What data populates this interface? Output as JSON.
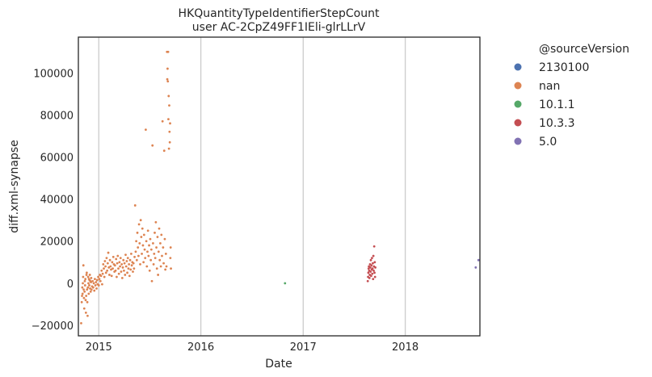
{
  "chart_data": {
    "type": "scatter",
    "title": "HKQuantityTypeIdentifierStepCount",
    "subtitle": "user AC-2CpZ49FF1IEli-glrLLrV",
    "xlabel": "Date",
    "ylabel": "diff.xml-synapse",
    "xlim": [
      "2014-10-20",
      "2018-09-25"
    ],
    "ylim": [
      -25000,
      117000
    ],
    "x_ticks": [
      "2015",
      "2016",
      "2017",
      "2018"
    ],
    "y_ticks": [
      -20000,
      0,
      20000,
      40000,
      60000,
      80000,
      100000
    ],
    "y_tick_labels": [
      "−20000",
      "0",
      "20000",
      "40000",
      "60000",
      "80000",
      "100000"
    ],
    "grid": "vertical",
    "legend_placement": "outside-right",
    "legend": {
      "title": "@sourceVersion",
      "entries": [
        {
          "name": "2130100",
          "color": "#4c72b0"
        },
        {
          "name": "nan",
          "color": "#dd8452"
        },
        {
          "name": "10.1.1",
          "color": "#55a868"
        },
        {
          "name": "10.3.3",
          "color": "#c44e52"
        },
        {
          "name": "5.0",
          "color": "#8172b3"
        }
      ]
    },
    "series": [
      {
        "name": "2130100",
        "color": "#4c72b0",
        "points": []
      },
      {
        "name": "nan",
        "color": "#dd8452",
        "points": [
          [
            "2014-10-30",
            -19000
          ],
          [
            "2014-11-01",
            -9000
          ],
          [
            "2014-11-02",
            -6000
          ],
          [
            "2014-11-03",
            -2000
          ],
          [
            "2014-11-04",
            -5000
          ],
          [
            "2014-11-05",
            0
          ],
          [
            "2014-11-06",
            3000
          ],
          [
            "2014-11-07",
            8500
          ],
          [
            "2014-11-08",
            -3000
          ],
          [
            "2014-11-09",
            -7000
          ],
          [
            "2014-11-10",
            -12000
          ],
          [
            "2014-11-11",
            -4000
          ],
          [
            "2014-11-12",
            1000
          ],
          [
            "2014-11-13",
            -1000
          ],
          [
            "2014-11-14",
            2000
          ],
          [
            "2014-11-15",
            -8000
          ],
          [
            "2014-11-16",
            -14000
          ],
          [
            "2014-11-17",
            -6000
          ],
          [
            "2014-11-18",
            4000
          ],
          [
            "2014-11-19",
            5000
          ],
          [
            "2014-11-20",
            -3000
          ],
          [
            "2014-11-21",
            -9000
          ],
          [
            "2014-11-22",
            -15500
          ],
          [
            "2014-11-23",
            -2000
          ],
          [
            "2014-11-24",
            3000
          ],
          [
            "2014-11-25",
            0
          ],
          [
            "2014-11-26",
            -5000
          ],
          [
            "2014-11-27",
            2000
          ],
          [
            "2014-11-28",
            -1000
          ],
          [
            "2014-11-29",
            1500
          ],
          [
            "2014-11-30",
            4000
          ],
          [
            "2014-12-01",
            -2500
          ],
          [
            "2014-12-02",
            1000
          ],
          [
            "2014-12-03",
            -4000
          ],
          [
            "2014-12-04",
            500
          ],
          [
            "2014-12-05",
            2500
          ],
          [
            "2014-12-06",
            -3000
          ],
          [
            "2014-12-08",
            -1500
          ],
          [
            "2014-12-10",
            1000
          ],
          [
            "2014-12-12",
            -2000
          ],
          [
            "2014-12-14",
            0
          ],
          [
            "2014-12-16",
            -3500
          ],
          [
            "2014-12-18",
            2000
          ],
          [
            "2014-12-20",
            -1000
          ],
          [
            "2014-12-22",
            500
          ],
          [
            "2014-12-24",
            -2500
          ],
          [
            "2014-12-26",
            1500
          ],
          [
            "2014-12-28",
            -500
          ],
          [
            "2014-12-30",
            3000
          ],
          [
            "2015-01-01",
            -1000
          ],
          [
            "2015-01-03",
            2000
          ],
          [
            "2015-01-05",
            4000
          ],
          [
            "2015-01-07",
            1000
          ],
          [
            "2015-01-09",
            3500
          ],
          [
            "2015-01-11",
            6000
          ],
          [
            "2015-01-13",
            -500
          ],
          [
            "2015-01-15",
            4500
          ],
          [
            "2015-01-17",
            9000
          ],
          [
            "2015-01-19",
            7000
          ],
          [
            "2015-01-21",
            3000
          ],
          [
            "2015-01-23",
            10500
          ],
          [
            "2015-01-25",
            8000
          ],
          [
            "2015-01-27",
            5000
          ],
          [
            "2015-01-29",
            12000
          ],
          [
            "2015-01-31",
            6000
          ],
          [
            "2015-02-02",
            9500
          ],
          [
            "2015-02-04",
            14500
          ],
          [
            "2015-02-06",
            7500
          ],
          [
            "2015-02-08",
            4000
          ],
          [
            "2015-02-10",
            11000
          ],
          [
            "2015-02-12",
            8000
          ],
          [
            "2015-02-14",
            6500
          ],
          [
            "2015-02-16",
            3500
          ],
          [
            "2015-02-18",
            10000
          ],
          [
            "2015-02-20",
            7000
          ],
          [
            "2015-02-22",
            12500
          ],
          [
            "2015-02-24",
            9000
          ],
          [
            "2015-02-26",
            5500
          ],
          [
            "2015-02-28",
            8500
          ],
          [
            "2015-03-02",
            6000
          ],
          [
            "2015-03-04",
            11500
          ],
          [
            "2015-03-06",
            3000
          ],
          [
            "2015-03-08",
            9500
          ],
          [
            "2015-03-10",
            13000
          ],
          [
            "2015-03-12",
            7000
          ],
          [
            "2015-03-14",
            4500
          ],
          [
            "2015-03-16",
            10000
          ],
          [
            "2015-03-18",
            8000
          ],
          [
            "2015-03-20",
            12000
          ],
          [
            "2015-03-22",
            5500
          ],
          [
            "2015-03-24",
            9000
          ],
          [
            "2015-03-26",
            2500
          ],
          [
            "2015-03-28",
            7500
          ],
          [
            "2015-03-30",
            11000
          ],
          [
            "2015-04-01",
            6000
          ],
          [
            "2015-04-03",
            9500
          ],
          [
            "2015-04-05",
            4000
          ],
          [
            "2015-04-07",
            13500
          ],
          [
            "2015-04-09",
            8000
          ],
          [
            "2015-04-11",
            10500
          ],
          [
            "2015-04-13",
            5000
          ],
          [
            "2015-04-15",
            12000
          ],
          [
            "2015-04-17",
            7000
          ],
          [
            "2015-04-19",
            9000
          ],
          [
            "2015-04-21",
            3500
          ],
          [
            "2015-04-23",
            11000
          ],
          [
            "2015-04-25",
            6500
          ],
          [
            "2015-04-27",
            14000
          ],
          [
            "2015-04-29",
            8500
          ],
          [
            "2015-05-01",
            10000
          ],
          [
            "2015-05-03",
            5500
          ],
          [
            "2015-05-05",
            9500
          ],
          [
            "2015-05-07",
            7000
          ],
          [
            "2015-05-09",
            12500
          ],
          [
            "2015-05-11",
            37000
          ],
          [
            "2015-05-13",
            15000
          ],
          [
            "2015-05-15",
            20000
          ],
          [
            "2015-05-17",
            11000
          ],
          [
            "2015-05-19",
            24000
          ],
          [
            "2015-05-21",
            17000
          ],
          [
            "2015-05-23",
            13000
          ],
          [
            "2015-05-25",
            28000
          ],
          [
            "2015-05-27",
            19000
          ],
          [
            "2015-05-29",
            9000
          ],
          [
            "2015-05-31",
            30000
          ],
          [
            "2015-06-02",
            22000
          ],
          [
            "2015-06-04",
            14000
          ],
          [
            "2015-06-06",
            26000
          ],
          [
            "2015-06-08",
            18000
          ],
          [
            "2015-06-10",
            10000
          ],
          [
            "2015-06-12",
            23000
          ],
          [
            "2015-06-14",
            16000
          ],
          [
            "2015-06-16",
            12000
          ],
          [
            "2015-06-18",
            73000
          ],
          [
            "2015-06-20",
            20000
          ],
          [
            "2015-06-22",
            8000
          ],
          [
            "2015-06-24",
            15000
          ],
          [
            "2015-06-26",
            25000
          ],
          [
            "2015-06-28",
            13000
          ],
          [
            "2015-06-30",
            18000
          ],
          [
            "2015-07-02",
            6000
          ],
          [
            "2015-07-04",
            21000
          ],
          [
            "2015-07-06",
            11000
          ],
          [
            "2015-07-08",
            16000
          ],
          [
            "2015-07-10",
            1000
          ],
          [
            "2015-07-12",
            65500
          ],
          [
            "2015-07-14",
            19000
          ],
          [
            "2015-07-16",
            9000
          ],
          [
            "2015-07-18",
            14000
          ],
          [
            "2015-07-20",
            24000
          ],
          [
            "2015-07-22",
            12000
          ],
          [
            "2015-07-24",
            29000
          ],
          [
            "2015-07-26",
            17000
          ],
          [
            "2015-07-28",
            7000
          ],
          [
            "2015-07-30",
            22000
          ],
          [
            "2015-08-01",
            4000
          ],
          [
            "2015-08-03",
            15000
          ],
          [
            "2015-08-05",
            26000
          ],
          [
            "2015-08-07",
            11000
          ],
          [
            "2015-08-09",
            19000
          ],
          [
            "2015-08-11",
            8000
          ],
          [
            "2015-08-13",
            23000
          ],
          [
            "2015-08-15",
            13000
          ],
          [
            "2015-08-17",
            77000
          ],
          [
            "2015-08-19",
            17000
          ],
          [
            "2015-08-21",
            9500
          ],
          [
            "2015-08-23",
            63000
          ],
          [
            "2015-08-25",
            21000
          ],
          [
            "2015-08-27",
            6500
          ],
          [
            "2015-08-29",
            14000
          ],
          [
            "2015-08-31",
            8000
          ],
          [
            "2015-09-02",
            110000
          ],
          [
            "2015-09-03",
            97000
          ],
          [
            "2015-09-04",
            102000
          ],
          [
            "2015-09-05",
            96000
          ],
          [
            "2015-09-06",
            110000
          ],
          [
            "2015-09-07",
            78000
          ],
          [
            "2015-09-08",
            89000
          ],
          [
            "2015-09-09",
            64000
          ],
          [
            "2015-09-10",
            84500
          ],
          [
            "2015-09-11",
            72000
          ],
          [
            "2015-09-12",
            67000
          ],
          [
            "2015-09-13",
            76000
          ],
          [
            "2015-09-14",
            12000
          ],
          [
            "2015-09-15",
            17000
          ],
          [
            "2015-09-16",
            7000
          ]
        ]
      },
      {
        "name": "10.1.1",
        "color": "#55a868",
        "points": [
          [
            "2016-10-28",
            0
          ]
        ]
      },
      {
        "name": "10.3.3",
        "color": "#c44e52",
        "points": [
          [
            "2017-08-20",
            1000
          ],
          [
            "2017-08-21",
            3000
          ],
          [
            "2017-08-22",
            5000
          ],
          [
            "2017-08-23",
            7000
          ],
          [
            "2017-08-24",
            8000
          ],
          [
            "2017-08-25",
            6000
          ],
          [
            "2017-08-26",
            2500
          ],
          [
            "2017-08-27",
            4000
          ],
          [
            "2017-08-28",
            9000
          ],
          [
            "2017-08-29",
            7500
          ],
          [
            "2017-08-30",
            5500
          ],
          [
            "2017-08-31",
            11000
          ],
          [
            "2017-09-01",
            3500
          ],
          [
            "2017-09-02",
            8500
          ],
          [
            "2017-09-03",
            6500
          ],
          [
            "2017-09-04",
            12000
          ],
          [
            "2017-09-05",
            4500
          ],
          [
            "2017-09-06",
            7000
          ],
          [
            "2017-09-07",
            9500
          ],
          [
            "2017-09-08",
            2000
          ],
          [
            "2017-09-09",
            13000
          ],
          [
            "2017-09-10",
            6000
          ],
          [
            "2017-09-11",
            8000
          ],
          [
            "2017-09-12",
            17500
          ],
          [
            "2017-09-13",
            5000
          ],
          [
            "2017-09-14",
            10000
          ],
          [
            "2017-09-15",
            3000
          ],
          [
            "2017-09-16",
            7500
          ]
        ]
      },
      {
        "name": "5.0",
        "color": "#8172b3",
        "points": [
          [
            "2018-09-10",
            7500
          ],
          [
            "2018-09-20",
            11000
          ]
        ]
      }
    ]
  }
}
